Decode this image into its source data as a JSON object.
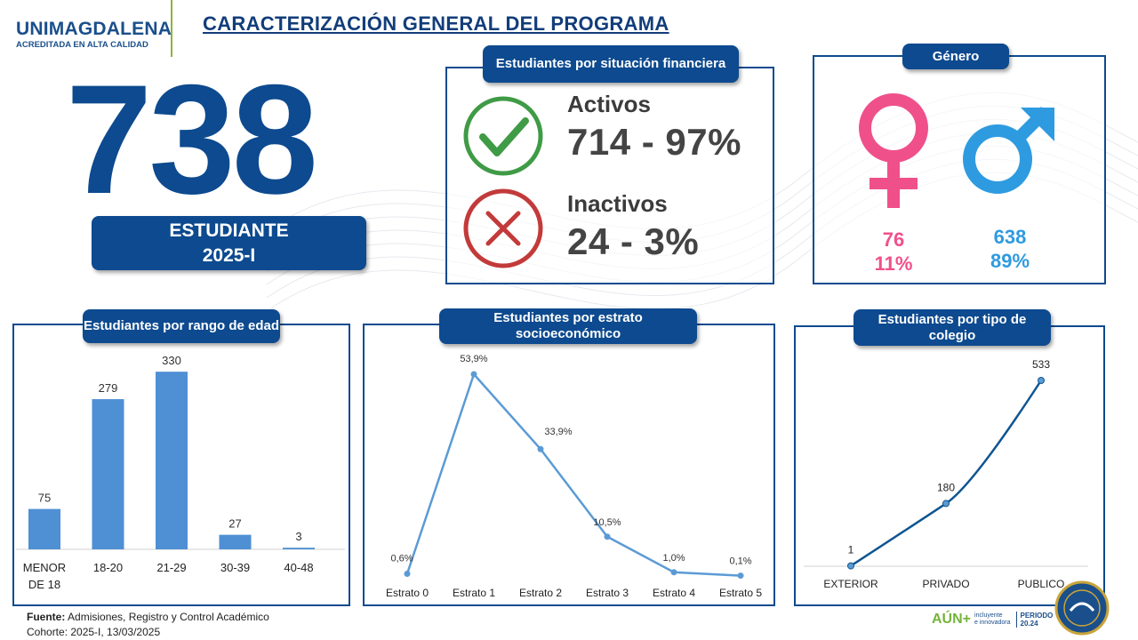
{
  "header": {
    "logo_main": "UNIMAGDALENA",
    "logo_sub": "ACREDITADA EN ALTA CALIDAD",
    "title": "CARACTERIZACIÓN GENERAL DEL PROGRAMA"
  },
  "total": {
    "number": "738",
    "label_line1": "ESTUDIANTE",
    "label_line2": "2025-I"
  },
  "financial": {
    "title": "Estudiantes por situación financiera",
    "active_label": "Activos",
    "active_value": "714 - 97%",
    "inactive_label": "Inactivos",
    "inactive_value": "24 - 3%"
  },
  "gender": {
    "title": "Género",
    "female_count": "76",
    "female_pct": "11%",
    "male_count": "638",
    "male_pct": "89%",
    "female_color": "#f0508a",
    "male_color": "#2e9be0"
  },
  "chart_data": [
    {
      "type": "bar",
      "title": "Estudiantes por rango de edad",
      "categories": [
        "MENOR DE 18",
        "18-20",
        "21-29",
        "30-39",
        "40-48"
      ],
      "values": [
        75,
        279,
        330,
        27,
        3
      ],
      "labels": [
        "75",
        "279",
        "330",
        "27",
        "3"
      ],
      "ylim": [
        0,
        360
      ],
      "color": "#4f8fd4"
    },
    {
      "type": "line",
      "title": "Estudiantes por estrato socioeconómico",
      "categories": [
        "Estrato 0",
        "Estrato 1",
        "Estrato 2",
        "Estrato 3",
        "Estrato 4",
        "Estrato 5"
      ],
      "values": [
        0.6,
        53.9,
        33.9,
        10.5,
        1.0,
        0.1
      ],
      "labels": [
        "0,6%",
        "53,9%",
        "33,9%",
        "10,5%",
        "1,0%",
        "0,1%"
      ],
      "ylim": [
        0,
        60
      ],
      "color": "#5b9bd5"
    },
    {
      "type": "line",
      "title": "Estudiantes por tipo de colegio",
      "categories": [
        "EXTERIOR",
        "PRIVADO",
        "PUBLICO"
      ],
      "values": [
        1,
        180,
        533
      ],
      "labels": [
        "1",
        "180",
        "533"
      ],
      "ylim": [
        0,
        560
      ],
      "color": "#0f5591"
    }
  ],
  "footer": {
    "source_label": "Fuente:",
    "source_text": " Admisiones, Registro y Control Académico",
    "cohort": "Cohorte: 2025-I, 13/03/2025"
  },
  "branding": {
    "aun_main": "AÚN+",
    "aun_sub1": "incluyente",
    "aun_sub2": "e innovadora",
    "period": "PERIODO",
    "year": "20.24"
  }
}
